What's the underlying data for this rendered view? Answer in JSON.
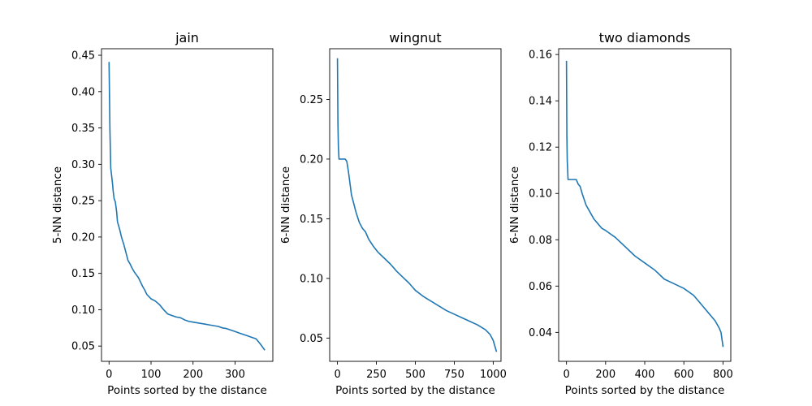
{
  "figure": {
    "background": "#ffffff",
    "line_color": "#1f77b4"
  },
  "chart_data": [
    {
      "type": "line",
      "title": "jain",
      "xlabel": "Points sorted by the distance",
      "ylabel": "5-NN distance",
      "xlim": [
        -18,
        390
      ],
      "ylim": [
        0.029,
        0.459
      ],
      "xticks": [
        0,
        100,
        200,
        300
      ],
      "yticks": [
        0.05,
        0.1,
        0.15,
        0.2,
        0.25,
        0.3,
        0.35,
        0.4,
        0.45
      ],
      "ytick_labels": [
        "0.05",
        "0.10",
        "0.15",
        "0.20",
        "0.25",
        "0.30",
        "0.35",
        "0.40",
        "0.45"
      ],
      "series": [
        {
          "x": [
            0,
            2,
            4,
            6,
            8,
            10,
            12,
            15,
            18,
            20,
            25,
            30,
            35,
            40,
            45,
            50,
            55,
            60,
            65,
            70,
            75,
            80,
            85,
            90,
            95,
            100,
            110,
            120,
            130,
            140,
            150,
            160,
            170,
            180,
            190,
            200,
            210,
            220,
            230,
            240,
            250,
            260,
            270,
            280,
            290,
            300,
            310,
            320,
            330,
            340,
            350,
            360,
            370
          ],
          "y": [
            0.44,
            0.35,
            0.295,
            0.285,
            0.275,
            0.262,
            0.253,
            0.248,
            0.235,
            0.221,
            0.211,
            0.199,
            0.19,
            0.179,
            0.168,
            0.163,
            0.157,
            0.152,
            0.148,
            0.144,
            0.138,
            0.132,
            0.127,
            0.121,
            0.118,
            0.115,
            0.112,
            0.107,
            0.1,
            0.094,
            0.092,
            0.09,
            0.089,
            0.086,
            0.084,
            0.083,
            0.082,
            0.081,
            0.08,
            0.079,
            0.078,
            0.077,
            0.075,
            0.074,
            0.072,
            0.07,
            0.068,
            0.066,
            0.064,
            0.062,
            0.06,
            0.053,
            0.045
          ]
        }
      ]
    },
    {
      "type": "line",
      "title": "wingnut",
      "xlabel": "Points sorted by the distance",
      "ylabel": "6-NN distance",
      "xlim": [
        -50,
        1050
      ],
      "ylim": [
        0.0305,
        0.2925
      ],
      "xticks": [
        0,
        250,
        500,
        750,
        1000
      ],
      "yticks": [
        0.05,
        0.1,
        0.15,
        0.2,
        0.25
      ],
      "ytick_labels": [
        "0.05",
        "0.10",
        "0.15",
        "0.20",
        "0.25"
      ],
      "series": [
        {
          "x": [
            0,
            3,
            6,
            10,
            15,
            20,
            40,
            50,
            60,
            70,
            80,
            90,
            100,
            120,
            140,
            160,
            180,
            200,
            230,
            260,
            300,
            340,
            380,
            420,
            460,
            500,
            550,
            600,
            650,
            700,
            750,
            800,
            850,
            900,
            950,
            980,
            1000,
            1020
          ],
          "y": [
            0.284,
            0.23,
            0.21,
            0.2,
            0.2,
            0.2,
            0.2,
            0.2,
            0.198,
            0.19,
            0.18,
            0.17,
            0.165,
            0.155,
            0.147,
            0.142,
            0.139,
            0.133,
            0.127,
            0.122,
            0.117,
            0.112,
            0.106,
            0.101,
            0.096,
            0.09,
            0.085,
            0.081,
            0.077,
            0.073,
            0.07,
            0.067,
            0.064,
            0.061,
            0.057,
            0.053,
            0.048,
            0.039
          ]
        }
      ]
    },
    {
      "type": "line",
      "title": "two diamonds",
      "xlabel": "Points sorted by the distance",
      "ylabel": "6-NN distance",
      "xlim": [
        -40,
        840
      ],
      "ylim": [
        0.0275,
        0.1625
      ],
      "xticks": [
        0,
        200,
        400,
        600,
        800
      ],
      "yticks": [
        0.04,
        0.06,
        0.08,
        0.1,
        0.12,
        0.14,
        0.16
      ],
      "ytick_labels": [
        "0.04",
        "0.06",
        "0.08",
        "0.10",
        "0.12",
        "0.14",
        "0.16"
      ],
      "series": [
        {
          "x": [
            0,
            2,
            4,
            8,
            20,
            50,
            60,
            70,
            80,
            100,
            120,
            140,
            160,
            180,
            200,
            250,
            300,
            350,
            400,
            450,
            500,
            550,
            600,
            650,
            680,
            700,
            720,
            740,
            760,
            780,
            790,
            800
          ],
          "y": [
            0.157,
            0.125,
            0.114,
            0.106,
            0.106,
            0.106,
            0.104,
            0.103,
            0.1,
            0.095,
            0.092,
            0.089,
            0.087,
            0.085,
            0.084,
            0.081,
            0.077,
            0.073,
            0.07,
            0.067,
            0.063,
            0.061,
            0.059,
            0.056,
            0.053,
            0.051,
            0.049,
            0.047,
            0.045,
            0.042,
            0.04,
            0.034
          ]
        }
      ]
    }
  ]
}
